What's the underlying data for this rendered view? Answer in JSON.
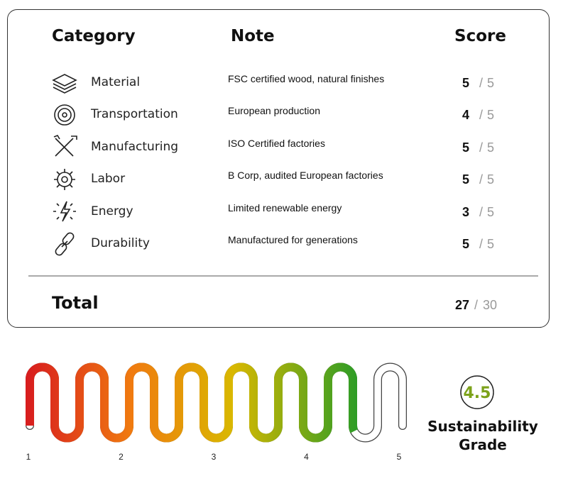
{
  "table": {
    "headers": [
      "Category",
      "Note",
      "Score"
    ],
    "separator": "/",
    "rows": [
      {
        "category": "Material",
        "note": "FSC certified wood, natural finishes",
        "score": 5,
        "max": 5
      },
      {
        "category": "Transportation",
        "note": "European production",
        "score": 4,
        "max": 5
      },
      {
        "category": "Manufacturing",
        "note": "ISO Certified factories",
        "score": 5,
        "max": 5
      },
      {
        "category": "Labor",
        "note": "B Corp, audited European factories",
        "score": 5,
        "max": 5
      },
      {
        "category": "Energy",
        "note": "Limited renewable energy",
        "score": 3,
        "max": 5
      },
      {
        "category": "Durability",
        "note": "Manufactured for generations",
        "score": 5,
        "max": 5
      }
    ],
    "total": {
      "label": "Total",
      "score": 27,
      "max": 30
    }
  },
  "gauge": {
    "ticks": [
      1,
      2,
      3,
      4,
      5
    ],
    "value": 4.5,
    "label": "Sustainability Grade"
  }
}
